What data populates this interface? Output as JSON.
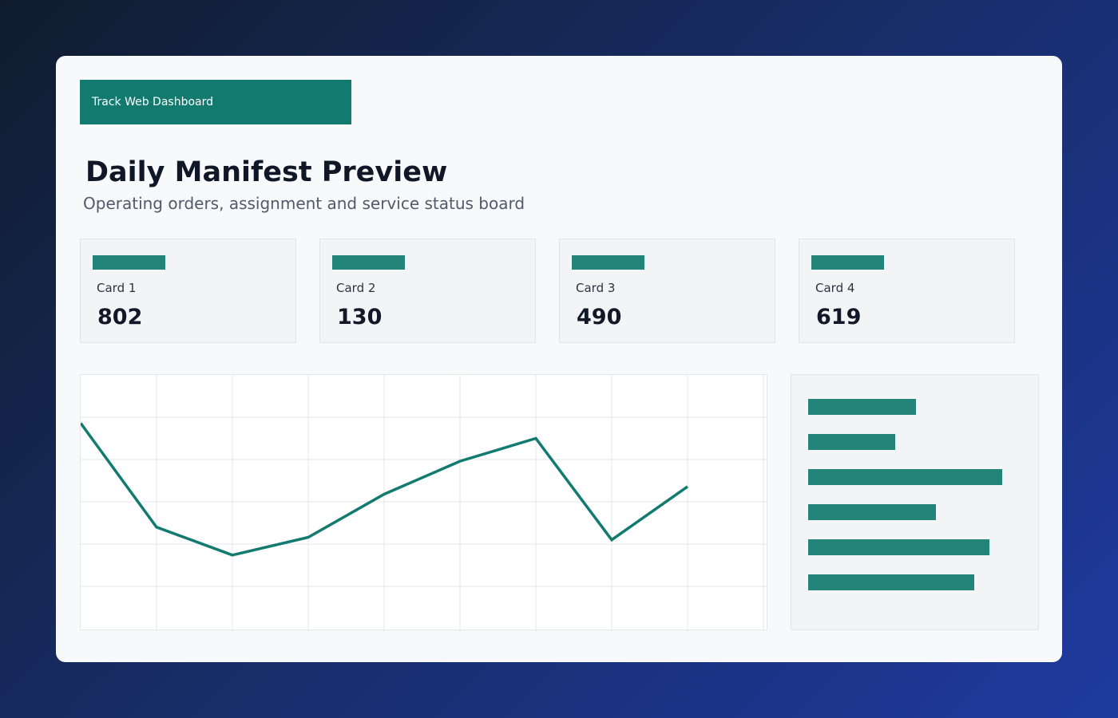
{
  "header": {
    "app_title": "Track Web Dashboard"
  },
  "page": {
    "title": "Daily Manifest Preview",
    "subtitle": "Operating orders, assignment and service status board"
  },
  "cards": [
    {
      "label": "Card 1",
      "value": "802"
    },
    {
      "label": "Card 2",
      "value": "130"
    },
    {
      "label": "Card 3",
      "value": "490"
    },
    {
      "label": "Card 4",
      "value": "619"
    }
  ],
  "colors": {
    "accent": "#137a6f",
    "line": "#137a6f",
    "bar": "#23847a",
    "grid": "#e6e7ea"
  },
  "chart_data": [
    {
      "type": "line",
      "x": [
        0,
        1,
        2,
        3,
        4,
        5,
        6,
        7,
        8
      ],
      "series": [
        {
          "values": [
            81,
            40,
            29,
            36,
            53,
            66,
            75,
            35,
            56
          ]
        }
      ],
      "xlim": [
        0,
        9
      ],
      "ylim": [
        0,
        100
      ],
      "grid": true
    },
    {
      "type": "bar",
      "orientation": "horizontal",
      "values": [
        135,
        109,
        243,
        160,
        227,
        208
      ],
      "xlim": [
        0,
        250
      ]
    }
  ]
}
